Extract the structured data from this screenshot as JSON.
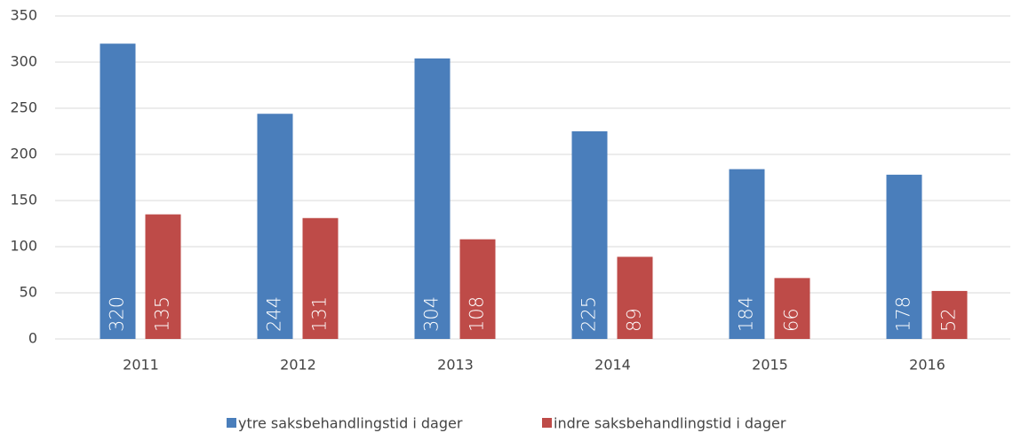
{
  "chart_data": {
    "type": "bar",
    "categories": [
      "2011",
      "2012",
      "2013",
      "2014",
      "2015",
      "2016"
    ],
    "series": [
      {
        "name": "ytre saksbehandlingstid i dager",
        "color": "#4a7ebb",
        "values": [
          320,
          244,
          304,
          225,
          184,
          178
        ]
      },
      {
        "name": "indre saksbehandlingstid i dager",
        "color": "#be4b48",
        "values": [
          135,
          131,
          108,
          89,
          66,
          52
        ]
      }
    ],
    "ylim": [
      0,
      350
    ],
    "yticks": [
      0,
      50,
      100,
      150,
      200,
      250,
      300,
      350
    ],
    "grid": true,
    "legend": "bottom"
  }
}
